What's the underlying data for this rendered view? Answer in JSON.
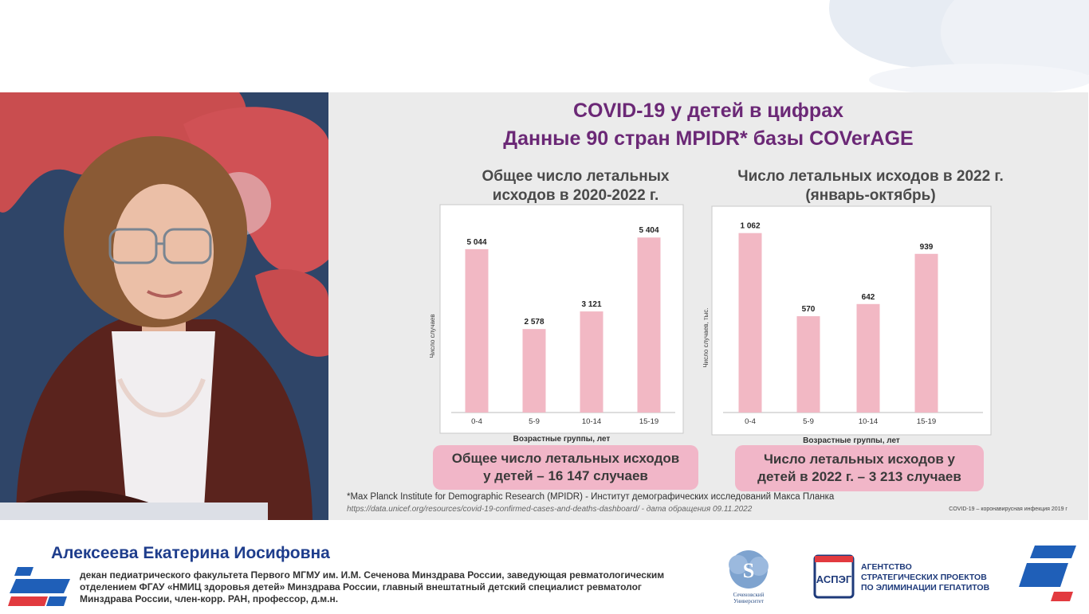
{
  "slide": {
    "title_line1": "COVID-19 у детей в цифрах",
    "title_line2": "Данные 90 стран MPIDR* базы COVerAGE",
    "chart1_title_line1": "Общее число летальных",
    "chart1_title_line2": "исходов в 2020-2022 г.",
    "chart2_title_line1": "Число летальных исходов в 2022 г.",
    "chart2_title_line2": "(январь-октябрь)",
    "summary1_line1": "Общее число летальных исходов",
    "summary1_line2": "у детей –  16 147 случаев",
    "summary2_line1": "Число летальных исходов у",
    "summary2_line2": "детей в 2022 г.  –  3 213 случаев",
    "footnote": "*Max Planck Institute for Demographic Research (MPIDR) - Институт демографических исследований Макса Планка",
    "footnote_link": "https://data.unicef.org/resources/covid-19-confirmed-cases-and-deaths-dashboard/ - дата обращения 09.11.2022",
    "footnote_right": "COVID-19 – коронавирусная инфекция 2019 г"
  },
  "chart_data": [
    {
      "type": "bar",
      "title": "Общее число летальных исходов в 2020-2022 г.",
      "categories": [
        "0-4",
        "5-9",
        "10-14",
        "15-19"
      ],
      "values": [
        5044,
        2578,
        3121,
        5404
      ],
      "value_labels": [
        "5 044",
        "2 578",
        "3 121",
        "5 404"
      ],
      "xlabel": "Возрастные группы, лет",
      "ylabel": "Число   случаев",
      "ylim": [
        0,
        6000
      ],
      "grid": false,
      "color": "#f2b8c4"
    },
    {
      "type": "bar",
      "title": "Число летальных исходов в 2022 г. (январь-октябрь)",
      "categories": [
        "0-4",
        "5-9",
        "10-14",
        "15-19"
      ],
      "values": [
        1062,
        570,
        642,
        939
      ],
      "value_labels": [
        "1 062",
        "570",
        "642",
        "939"
      ],
      "xlabel": "Возрастные группы, лет",
      "ylabel": "Число   случаев, тыс.",
      "ylim": [
        0,
        1150
      ],
      "grid": false,
      "color": "#f2b8c4"
    }
  ],
  "lower_third": {
    "name": "Алексеева Екатерина Иосифовна",
    "bio_line1": "декан педиатрического факультета Первого МГМУ им. И.М. Сеченова Минздрава России, заведующая ревматологическим",
    "bio_line2": "отделением ФГАУ «НМИЦ здоровья детей» Минздрава России, главный внештатный детский специалист ревматолог",
    "bio_line3": "Минздрава России, член-корр. РАН, профессор, д.м.н.",
    "seal_caption_line1": "Сеченовский",
    "seal_caption_line2": "Университет",
    "agency_logo_letters": "АСПЭГ",
    "agency_line1": "АГЕНТСТВО",
    "agency_line2": "СТРАТЕГИЧЕСКИХ ПРОЕКТОВ",
    "agency_line3": "ПО ЭЛИМИНАЦИИ ГЕПАТИТОВ"
  },
  "colors": {
    "title_purple": "#6b2876",
    "bar_pink": "#f2b8c4",
    "summary_pink": "#f1b6c8",
    "name_blue": "#1e3d8c",
    "logo_red": "#e23a3f",
    "logo_blue": "#1f5fb8"
  }
}
